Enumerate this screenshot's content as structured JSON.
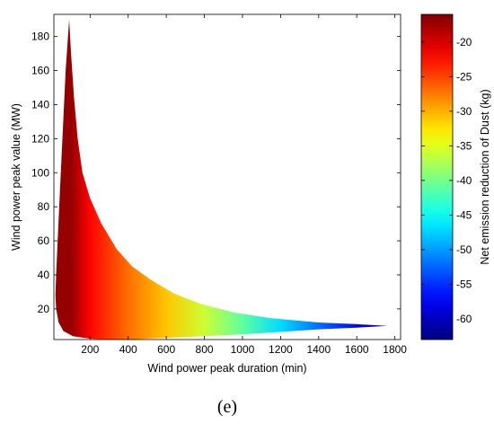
{
  "chart_data": {
    "type": "heatmap",
    "xlabel": "Wind power peak duration (min)",
    "ylabel": "Wind power peak value (MW)",
    "colorbar_label": "Net emission reduction of Dust (kg)",
    "xlim": [
      10,
      1830
    ],
    "ylim": [
      2,
      193
    ],
    "xticks": [
      200,
      400,
      600,
      800,
      1000,
      1200,
      1400,
      1600,
      1800
    ],
    "yticks": [
      20,
      40,
      60,
      80,
      100,
      120,
      140,
      160,
      180
    ],
    "clim": [
      -63,
      -16
    ],
    "colorbar_ticks": [
      -20,
      -25,
      -30,
      -35,
      -40,
      -45,
      -50,
      -55,
      -60
    ],
    "colormap": "jet",
    "region": {
      "description_none": "",
      "left_boundary": [
        [
          90,
          190
        ],
        [
          72,
          160
        ],
        [
          55,
          120
        ],
        [
          42,
          90
        ],
        [
          30,
          60
        ],
        [
          22,
          40
        ],
        [
          18,
          28
        ],
        [
          22,
          20
        ],
        [
          35,
          12
        ],
        [
          60,
          7
        ],
        [
          110,
          4
        ],
        [
          200,
          2.5
        ],
        [
          300,
          2
        ],
        [
          400,
          2
        ]
      ],
      "right_boundary": [
        [
          90,
          190
        ],
        [
          100,
          170
        ],
        [
          115,
          145
        ],
        [
          135,
          120
        ],
        [
          160,
          100
        ],
        [
          200,
          85
        ],
        [
          260,
          70
        ],
        [
          340,
          55
        ],
        [
          420,
          45
        ],
        [
          520,
          37
        ],
        [
          640,
          29
        ],
        [
          780,
          23
        ],
        [
          950,
          18
        ],
        [
          1150,
          14.5
        ],
        [
          1400,
          12
        ],
        [
          1600,
          11
        ],
        [
          1760,
          10
        ]
      ],
      "bottom_boundary": [
        [
          400,
          2
        ],
        [
          600,
          3
        ],
        [
          800,
          4
        ],
        [
          1000,
          5
        ],
        [
          1200,
          6.5
        ],
        [
          1400,
          8
        ],
        [
          1600,
          9
        ],
        [
          1760,
          10
        ]
      ]
    },
    "value_samples": [
      {
        "x": 100,
        "y": 150,
        "z": -17
      },
      {
        "x": 200,
        "y": 20,
        "z": -22
      },
      {
        "x": 400,
        "y": 20,
        "z": -27
      },
      {
        "x": 600,
        "y": 15,
        "z": -31
      },
      {
        "x": 800,
        "y": 15,
        "z": -36
      },
      {
        "x": 1000,
        "y": 13,
        "z": -41
      },
      {
        "x": 1200,
        "y": 12,
        "z": -47
      },
      {
        "x": 1400,
        "y": 11,
        "z": -52
      },
      {
        "x": 1600,
        "y": 10.5,
        "z": -57
      },
      {
        "x": 1760,
        "y": 10,
        "z": -62
      }
    ]
  },
  "caption": "(e)"
}
